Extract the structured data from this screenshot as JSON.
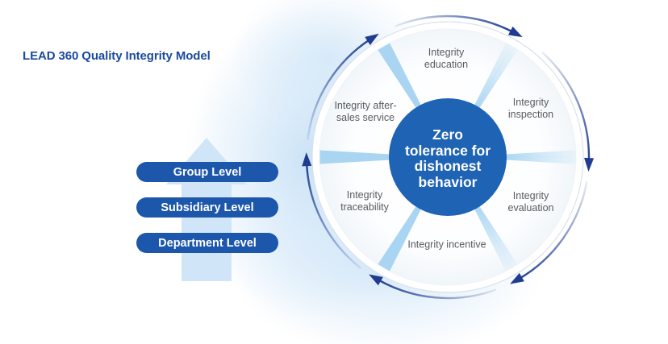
{
  "title": "LEAD 360 Quality Integrity Model",
  "levels": {
    "items": [
      {
        "label": "Group Level"
      },
      {
        "label": "Subsidiary Level"
      },
      {
        "label": "Department Level"
      }
    ]
  },
  "wheel": {
    "hub_text": "Zero tolerance for dishonest behavior",
    "hub_lines": [
      "Zero",
      "tolerance for",
      "dishonest",
      "behavior"
    ],
    "segments": [
      {
        "id": "education",
        "label": "Integrity education"
      },
      {
        "id": "inspection",
        "label": "Integrity inspection"
      },
      {
        "id": "evaluation",
        "label": "Integrity evaluation"
      },
      {
        "id": "incentive",
        "label": "Integrity incentive"
      },
      {
        "id": "traceability",
        "label": "Integrity traceability"
      },
      {
        "id": "after-sales-service",
        "label": "Integrity after-sales service"
      }
    ],
    "icons": [
      {
        "name": "cycle-arrow-icon",
        "meaning": "clockwise circulation arrows around wheel"
      },
      {
        "name": "up-arrow-icon",
        "meaning": "escalation arrow behind level pills"
      }
    ]
  },
  "colors": {
    "title_blue": "#1b4a9e",
    "pill_blue": "#1d57ac",
    "hub_blue": "#1f63b5",
    "arrow_navy": "#1f3c90",
    "divider_light_blue": "#a9d5f2",
    "glow_light_blue": "#c6e0f6",
    "label_gray": "#5a5b5d",
    "white": "#ffffff"
  }
}
